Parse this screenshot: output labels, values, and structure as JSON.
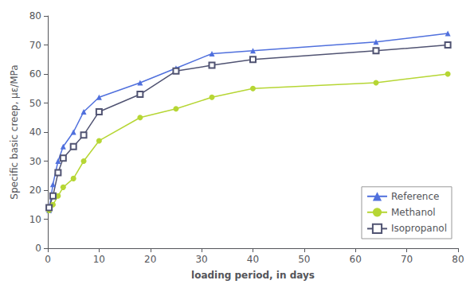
{
  "chart_data": {
    "type": "line",
    "xlabel": "loading period, in days",
    "ylabel": "Specific basic creep, με/MPa",
    "x": [
      0.25,
      1,
      2,
      3,
      5,
      7,
      10,
      18,
      25,
      32,
      40,
      64,
      78
    ],
    "series": [
      {
        "name": "Reference",
        "marker": "triangle",
        "values": [
          13,
          22,
          30,
          35,
          40,
          47,
          52,
          57,
          62,
          67,
          68,
          71,
          74
        ]
      },
      {
        "name": "Methanol",
        "marker": "circle",
        "values": [
          13,
          15,
          18,
          21,
          24,
          30,
          37,
          45,
          48,
          52,
          55,
          57,
          60
        ]
      },
      {
        "name": "Isopropanol",
        "marker": "open_square",
        "values": [
          14,
          18,
          26,
          31,
          35,
          39,
          47,
          53,
          61,
          63,
          65,
          68,
          70
        ]
      }
    ],
    "xlim": [
      0,
      80
    ],
    "ylim": [
      0,
      80
    ],
    "xticks": [
      0,
      10,
      20,
      30,
      40,
      50,
      60,
      70,
      80
    ],
    "yticks": [
      0,
      10,
      20,
      30,
      40,
      50,
      60,
      70,
      80
    ],
    "grid": false,
    "legend": "lower right"
  }
}
